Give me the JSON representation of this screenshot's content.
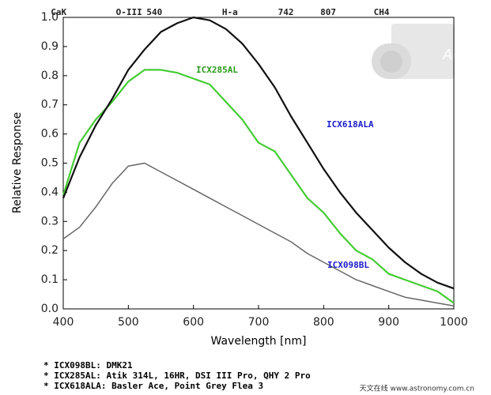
{
  "chart_data": {
    "type": "line",
    "xlabel": "Wavelength [nm]",
    "ylabel": "Relative Response",
    "x": [
      400,
      425,
      450,
      475,
      500,
      525,
      550,
      575,
      600,
      625,
      650,
      675,
      700,
      725,
      750,
      775,
      800,
      825,
      850,
      875,
      900,
      925,
      950,
      975,
      1000
    ],
    "series": [
      {
        "name": "ICX098BL",
        "color": "#666666",
        "label_color": "#1a1acc",
        "values": [
          0.24,
          0.28,
          0.35,
          0.43,
          0.49,
          0.5,
          0.47,
          0.44,
          0.41,
          0.38,
          0.35,
          0.32,
          0.29,
          0.26,
          0.23,
          0.19,
          0.16,
          0.13,
          0.1,
          0.08,
          0.06,
          0.04,
          0.03,
          0.02,
          0.01
        ]
      },
      {
        "name": "ICX285AL",
        "color": "#44cc33",
        "label_color": "#2a9a1a",
        "values": [
          0.39,
          0.57,
          0.65,
          0.71,
          0.78,
          0.82,
          0.82,
          0.81,
          0.79,
          0.77,
          0.71,
          0.65,
          0.57,
          0.54,
          0.46,
          0.38,
          0.33,
          0.26,
          0.2,
          0.17,
          0.12,
          0.1,
          0.08,
          0.06,
          0.02
        ]
      },
      {
        "name": "ICX618ALA",
        "color": "#111111",
        "label_color": "#1a1acc",
        "values": [
          0.38,
          0.52,
          0.63,
          0.72,
          0.82,
          0.89,
          0.95,
          0.98,
          1.0,
          0.99,
          0.96,
          0.91,
          0.84,
          0.76,
          0.66,
          0.57,
          0.48,
          0.4,
          0.33,
          0.27,
          0.21,
          0.16,
          0.12,
          0.09,
          0.07
        ]
      }
    ],
    "xlim": [
      400,
      1000
    ],
    "ylim": [
      0,
      1
    ],
    "xticks": [
      400,
      500,
      600,
      700,
      800,
      900,
      1000
    ],
    "yticks": [
      {
        "value": 0,
        "label": "0.0"
      },
      0.1,
      0.2,
      0.3,
      0.4,
      0.5,
      0.6,
      0.7,
      0.8,
      0.9,
      {
        "value": 1,
        "label": "1.0"
      }
    ],
    "top_labels": [
      {
        "value": 393,
        "label": "CaK"
      },
      {
        "value": 501,
        "label": "O-III"
      },
      540,
      {
        "value": 656,
        "label": "H-a"
      },
      742,
      807,
      {
        "value": 889,
        "label": "CH4"
      }
    ],
    "notes": [
      "* ICX098BL: DMK21",
      "* ICX285AL: Atik 314L, 16HR, DSI III Pro, QHY 2 Pro",
      "* ICX618ALA: Basler Ace, Point Grey Flea 3"
    ],
    "watermark": "天文在线 www.astronomy.com.cn"
  }
}
